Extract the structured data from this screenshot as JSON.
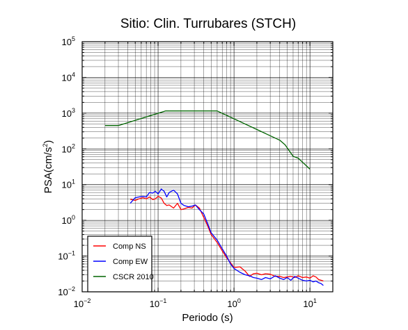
{
  "chart_data": {
    "type": "line",
    "title": "Sitio: Clin. Turrubares (STCH)",
    "xlabel": "Periodo (s)",
    "ylabel": "PSA(cm/s2)",
    "ylabel_main": "PSA(cm/s",
    "ylabel_sup": "2",
    "ylabel_close": ")",
    "x_scale": "log",
    "y_scale": "log",
    "xlim": [
      0.01,
      20
    ],
    "ylim": [
      0.01,
      100000
    ],
    "grid": true,
    "legend_position": "bottom-left",
    "x_ticks": [
      {
        "value": 0.01,
        "base": "10",
        "exp": "−2"
      },
      {
        "value": 0.1,
        "base": "10",
        "exp": "−1"
      },
      {
        "value": 1,
        "base": "10",
        "exp": "0"
      },
      {
        "value": 10,
        "base": "10",
        "exp": "1"
      }
    ],
    "y_ticks": [
      {
        "value": 0.01,
        "base": "10",
        "exp": "−2"
      },
      {
        "value": 0.1,
        "base": "10",
        "exp": "−1"
      },
      {
        "value": 1,
        "base": "10",
        "exp": "0"
      },
      {
        "value": 10,
        "base": "10",
        "exp": "1"
      },
      {
        "value": 100,
        "base": "10",
        "exp": "2"
      },
      {
        "value": 1000,
        "base": "10",
        "exp": "3"
      },
      {
        "value": 10000,
        "base": "10",
        "exp": "4"
      },
      {
        "value": 100000,
        "base": "10",
        "exp": "5"
      }
    ],
    "series": [
      {
        "name": "Comp NS",
        "color": "#ff0000",
        "x": [
          0.043,
          0.05,
          0.056,
          0.063,
          0.07,
          0.077,
          0.085,
          0.092,
          0.1,
          0.11,
          0.12,
          0.13,
          0.14,
          0.16,
          0.18,
          0.2,
          0.22,
          0.25,
          0.28,
          0.31,
          0.35,
          0.4,
          0.45,
          0.5,
          0.6,
          0.7,
          0.8,
          0.9,
          1.0,
          1.2,
          1.4,
          1.6,
          1.8,
          2.0,
          2.3,
          2.6,
          3.0,
          3.5,
          4.0,
          4.5,
          5.0,
          5.6,
          6.3,
          7.0,
          8.0,
          9.0,
          10.0,
          11.0,
          12.0,
          13.0,
          14.0,
          15.0
        ],
        "y": [
          3.9,
          3.6,
          4.0,
          4.3,
          4.0,
          4.5,
          3.8,
          4.0,
          4.7,
          4.2,
          3.0,
          2.6,
          2.7,
          2.2,
          3.0,
          2.0,
          2.1,
          2.3,
          2.2,
          2.7,
          2.2,
          1.2,
          0.7,
          0.4,
          0.24,
          0.14,
          0.09,
          0.065,
          0.048,
          0.05,
          0.038,
          0.027,
          0.032,
          0.033,
          0.03,
          0.032,
          0.031,
          0.027,
          0.027,
          0.025,
          0.026,
          0.027,
          0.025,
          0.028,
          0.025,
          0.026,
          0.024,
          0.028,
          0.026,
          0.022,
          0.021,
          0.02
        ]
      },
      {
        "name": "Comp EW",
        "color": "#0000ff",
        "x": [
          0.043,
          0.05,
          0.056,
          0.063,
          0.07,
          0.077,
          0.085,
          0.092,
          0.1,
          0.11,
          0.12,
          0.13,
          0.14,
          0.16,
          0.18,
          0.2,
          0.22,
          0.25,
          0.28,
          0.31,
          0.35,
          0.4,
          0.45,
          0.5,
          0.6,
          0.7,
          0.8,
          0.9,
          1.0,
          1.2,
          1.4,
          1.6,
          1.8,
          2.0,
          2.3,
          2.6,
          3.0,
          3.5,
          4.0,
          4.5,
          5.0,
          5.6,
          6.3,
          7.0,
          8.0,
          9.0,
          10.0,
          11.0,
          12.0,
          13.0,
          14.0,
          15.0
        ],
        "y": [
          3.0,
          4.3,
          4.5,
          4.7,
          4.5,
          6.0,
          5.8,
          6.5,
          5.5,
          7.5,
          6.5,
          4.5,
          6.0,
          7.0,
          5.5,
          3.0,
          2.6,
          2.4,
          2.5,
          2.7,
          2.0,
          1.5,
          0.8,
          0.45,
          0.28,
          0.16,
          0.1,
          0.06,
          0.045,
          0.035,
          0.03,
          0.028,
          0.025,
          0.024,
          0.022,
          0.025,
          0.023,
          0.028,
          0.024,
          0.022,
          0.025,
          0.021,
          0.027,
          0.024,
          0.021,
          0.02,
          0.021,
          0.019,
          0.02,
          0.018,
          0.017,
          0.015
        ]
      },
      {
        "name": "CSCR 2010",
        "color": "#006400",
        "x": [
          0.02,
          0.03,
          0.125,
          0.6,
          4.0,
          4.7,
          6.0,
          7.0,
          10.0
        ],
        "y": [
          450,
          450,
          1150,
          1150,
          175,
          130,
          62,
          55,
          27
        ]
      }
    ]
  }
}
